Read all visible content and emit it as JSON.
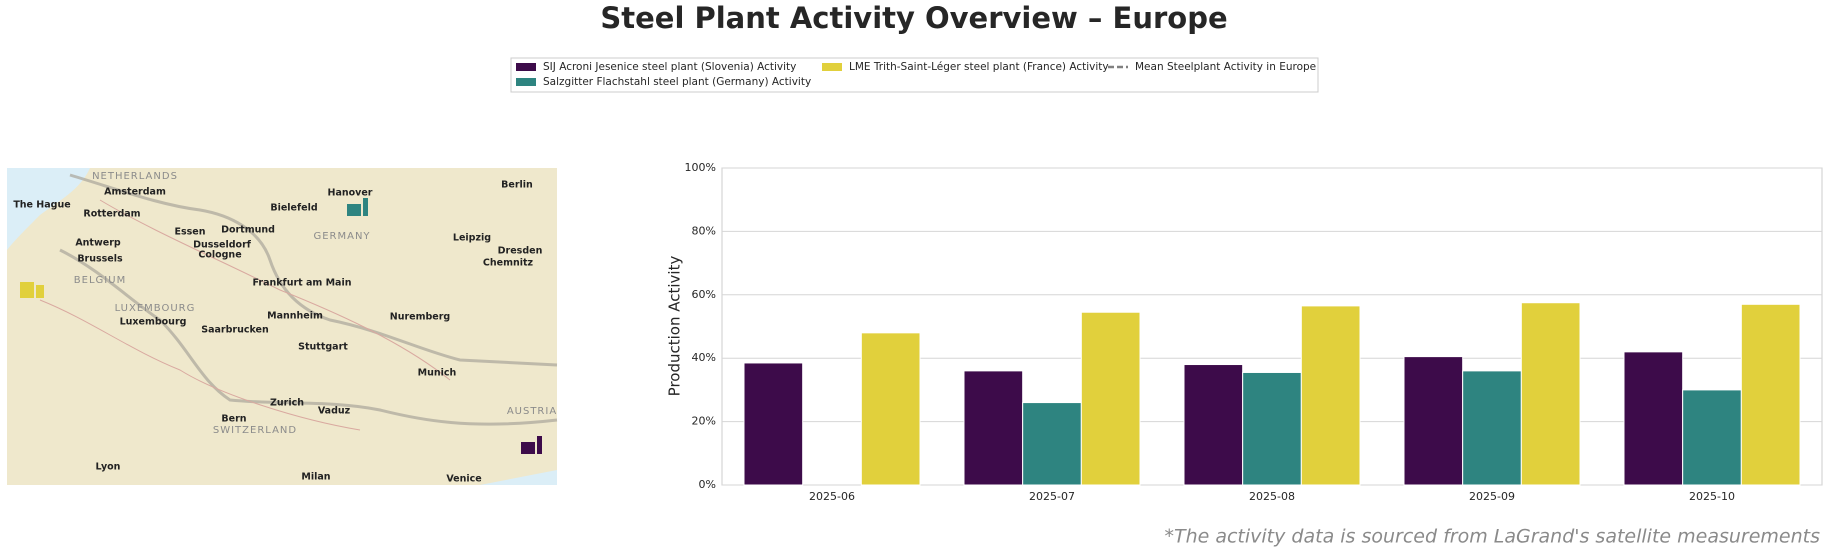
{
  "chart_data": {
    "type": "bar",
    "title": "Steel Plant Activity Overview – Europe",
    "y_label": "Production Activity",
    "footnote": "*The activity data is sourced from LaGrand's satellite measurements",
    "categories": [
      "2025-06",
      "2025-07",
      "2025-08",
      "2025-09",
      "2025-10"
    ],
    "series": [
      {
        "name": "SIJ Acroni Jesenice steel plant (Slovenia) Activity",
        "color": "#3d0b4a",
        "values": [
          38.5,
          36,
          38,
          40.5,
          42
        ]
      },
      {
        "name": "Salzgitter Flachstahl steel plant (Germany) Activity",
        "color": "#2e8480",
        "values": [
          null,
          26,
          35.5,
          36,
          30
        ]
      },
      {
        "name": "LME Trith-Saint-Léger steel plant (France) Activity",
        "color": "#e1d03c",
        "values": [
          48,
          54.5,
          56.5,
          57.5,
          57
        ]
      },
      {
        "name": "Mean Steelplant Activity in Europe",
        "color": "#808080",
        "type": "line",
        "values": [
          null,
          null,
          null,
          null,
          null
        ]
      }
    ],
    "ylim": [
      0,
      100
    ],
    "yticks": [
      {
        "value": 0,
        "label": "0%"
      },
      {
        "value": 20,
        "label": "20%"
      },
      {
        "value": 40,
        "label": "40%"
      },
      {
        "value": 60,
        "label": "60%"
      },
      {
        "value": 80,
        "label": "80%"
      },
      {
        "value": 100,
        "label": "100%"
      }
    ],
    "grid": true
  },
  "map": {
    "labels": [
      "NETHERLANDS",
      "Amsterdam",
      "The Hague",
      "Rotterdam",
      "Hanover",
      "Berlin",
      "Bielefeld",
      "Essen",
      "Dortmund",
      "GERMANY",
      "Antwerp",
      "Dusseldorf",
      "Leipzig",
      "Brussels",
      "Cologne",
      "Dresden",
      "Chemnitz",
      "BELGIUM",
      "Frankfurt am Main",
      "LUXEMBOURG",
      "Luxembourg",
      "Mannheim",
      "Nuremberg",
      "Saarbrucken",
      "Stuttgart",
      "Munich",
      "Zurich",
      "Vaduz",
      "Bern",
      "SWITZERLAND",
      "AUSTRIA",
      "Lyon",
      "Milan",
      "Venice"
    ]
  }
}
